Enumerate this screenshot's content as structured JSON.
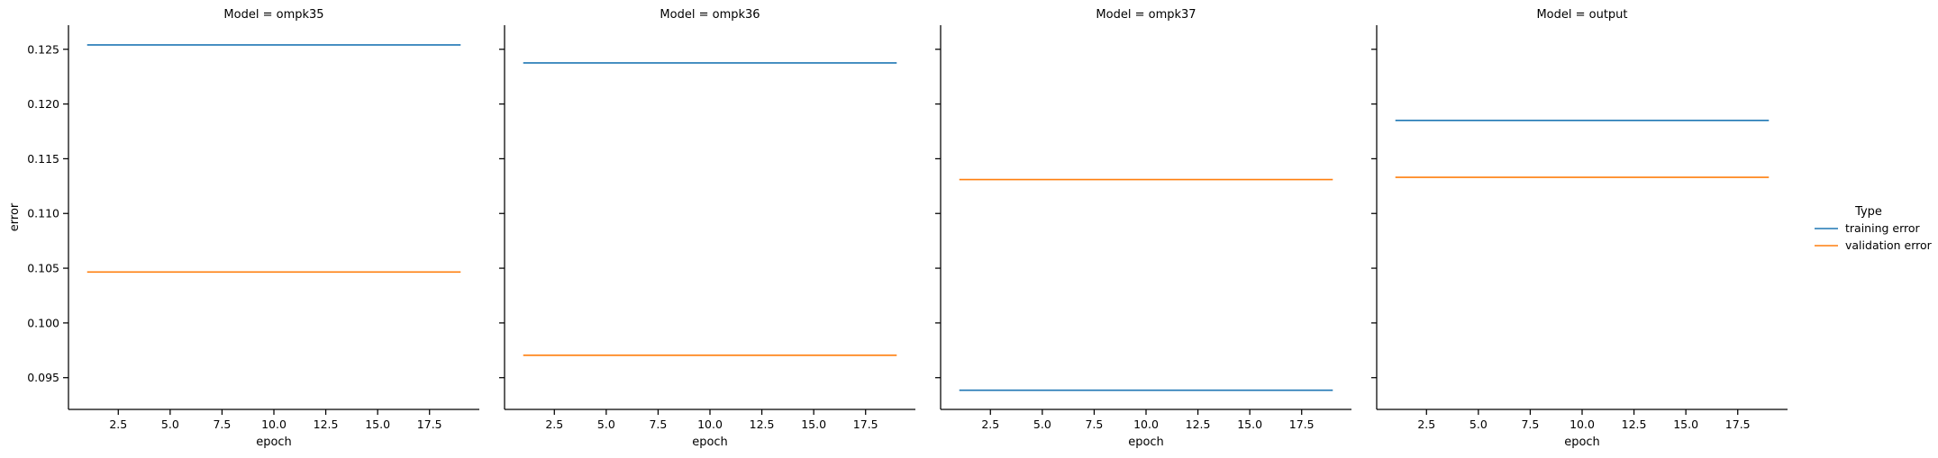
{
  "chart_data": {
    "type": "line",
    "facet_variable": "Model",
    "facets": [
      {
        "title": "Model = ompk35",
        "series": [
          {
            "name": "training error",
            "x": [
              1,
              19
            ],
            "y": [
              0.1254,
              0.1254
            ]
          },
          {
            "name": "validation error",
            "x": [
              1,
              19
            ],
            "y": [
              0.10465,
              0.10465
            ]
          }
        ]
      },
      {
        "title": "Model = ompk36",
        "series": [
          {
            "name": "training error",
            "x": [
              1,
              19
            ],
            "y": [
              0.12375,
              0.12375
            ]
          },
          {
            "name": "validation error",
            "x": [
              1,
              19
            ],
            "y": [
              0.09705,
              0.09705
            ]
          }
        ]
      },
      {
        "title": "Model = ompk37",
        "series": [
          {
            "name": "training error",
            "x": [
              1,
              19
            ],
            "y": [
              0.09385,
              0.09385
            ]
          },
          {
            "name": "validation error",
            "x": [
              1,
              19
            ],
            "y": [
              0.1131,
              0.1131
            ]
          }
        ]
      },
      {
        "title": "Model = output",
        "series": [
          {
            "name": "training error",
            "x": [
              1,
              19
            ],
            "y": [
              0.1185,
              0.1185
            ]
          },
          {
            "name": "validation error",
            "x": [
              1,
              19
            ],
            "y": [
              0.1133,
              0.1133
            ]
          }
        ]
      }
    ],
    "xlabel": "epoch",
    "ylabel": "error",
    "xlim": [
      0.1,
      19.9
    ],
    "ylim": [
      0.0921,
      0.1272
    ],
    "xticks": [
      2.5,
      5.0,
      7.5,
      10.0,
      12.5,
      15.0,
      17.5
    ],
    "xtick_labels": [
      "2.5",
      "5.0",
      "7.5",
      "10.0",
      "12.5",
      "15.0",
      "17.5"
    ],
    "yticks": [
      0.095,
      0.1,
      0.105,
      0.11,
      0.115,
      0.12,
      0.125
    ],
    "ytick_labels": [
      "0.095",
      "0.100",
      "0.105",
      "0.110",
      "0.115",
      "0.120",
      "0.125"
    ],
    "shared_y": true,
    "grid": false,
    "legend": {
      "title": "Type",
      "placement": "right",
      "entries": [
        {
          "label": "training error",
          "color": "#1f77b4"
        },
        {
          "label": "validation error",
          "color": "#ff7f0e"
        }
      ]
    }
  }
}
